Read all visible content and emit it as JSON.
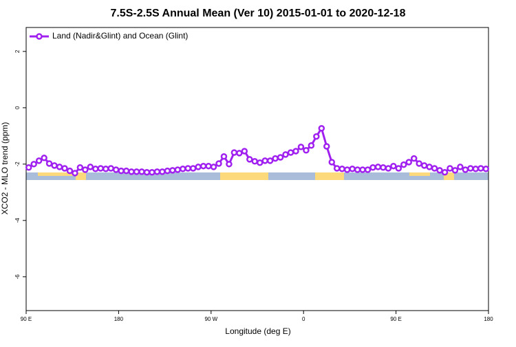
{
  "chart_data": {
    "type": "line",
    "title": "7.5S-2.5S Annual Mean (Ver 10)   2015-01-01 to 2020-12-18",
    "x_label": "Longitude (deg E)",
    "y_label": "XCO2 - MLO trend (ppm)",
    "xlim": [
      90,
      540
    ],
    "xticks": [
      {
        "value": 90,
        "label": "90 E"
      },
      {
        "value": 180,
        "label": "180"
      },
      {
        "value": 270,
        "label": "90 W"
      },
      {
        "value": 360,
        "label": "0"
      },
      {
        "value": 450,
        "label": "90 E"
      },
      {
        "value": 540,
        "label": "180"
      }
    ],
    "ylim": [
      -7.2,
      2.85
    ],
    "yticks": [
      2,
      0,
      -2,
      -4,
      -6
    ],
    "legend": "top-left",
    "x": [
      92.5,
      97.5,
      102.5,
      107.5,
      112.5,
      117.5,
      122.5,
      127.5,
      132.5,
      137.5,
      142.5,
      147.5,
      152.5,
      157.5,
      162.5,
      167.5,
      172.5,
      177.5,
      182.5,
      187.5,
      192.5,
      197.5,
      202.5,
      207.5,
      212.5,
      217.5,
      222.5,
      227.5,
      232.5,
      237.5,
      242.5,
      247.5,
      252.5,
      257.5,
      262.5,
      267.5,
      272.5,
      277.5,
      282.5,
      287.5,
      292.5,
      297.5,
      302.5,
      307.5,
      312.5,
      317.5,
      322.5,
      327.5,
      332.5,
      337.5,
      342.5,
      347.5,
      352.5,
      357.5,
      362.5,
      367.5,
      372.5,
      377.5,
      382.5,
      387.5,
      392.5,
      397.5,
      402.5,
      407.5,
      412.5,
      417.5,
      422.5,
      427.5,
      432.5,
      437.5,
      442.5,
      447.5,
      452.5,
      457.5,
      462.5,
      467.5,
      472.5,
      477.5,
      482.5,
      487.5,
      492.5,
      497.5,
      502.5,
      507.5,
      512.5,
      517.5,
      522.5,
      527.5,
      532.5,
      537.5
    ],
    "series": [
      {
        "name": "Land (Nadir&Glint) and Ocean (Glint)",
        "color": "#a020f0",
        "values": [
          -2.12,
          -2.0,
          -1.88,
          -1.78,
          -1.98,
          -2.05,
          -2.1,
          -2.15,
          -2.24,
          -2.32,
          -2.12,
          -2.2,
          -2.1,
          -2.17,
          -2.15,
          -2.17,
          -2.15,
          -2.2,
          -2.24,
          -2.24,
          -2.27,
          -2.27,
          -2.27,
          -2.29,
          -2.29,
          -2.27,
          -2.27,
          -2.24,
          -2.22,
          -2.2,
          -2.17,
          -2.15,
          -2.15,
          -2.1,
          -2.07,
          -2.07,
          -2.1,
          -1.98,
          -1.73,
          -2.0,
          -1.59,
          -1.61,
          -1.54,
          -1.83,
          -1.9,
          -1.95,
          -1.88,
          -1.88,
          -1.8,
          -1.76,
          -1.66,
          -1.59,
          -1.54,
          -1.39,
          -1.51,
          -1.34,
          -1.02,
          -0.73,
          -1.37,
          -1.93,
          -2.15,
          -2.17,
          -2.2,
          -2.17,
          -2.2,
          -2.2,
          -2.2,
          -2.12,
          -2.1,
          -2.12,
          -2.15,
          -2.07,
          -2.15,
          -2.02,
          -1.93,
          -1.8,
          -1.98,
          -2.05,
          -2.1,
          -2.15,
          -2.22,
          -2.29,
          -2.15,
          -2.22,
          -2.1,
          -2.2,
          -2.15,
          -2.17,
          -2.15,
          -2.17
        ]
      }
    ]
  }
}
